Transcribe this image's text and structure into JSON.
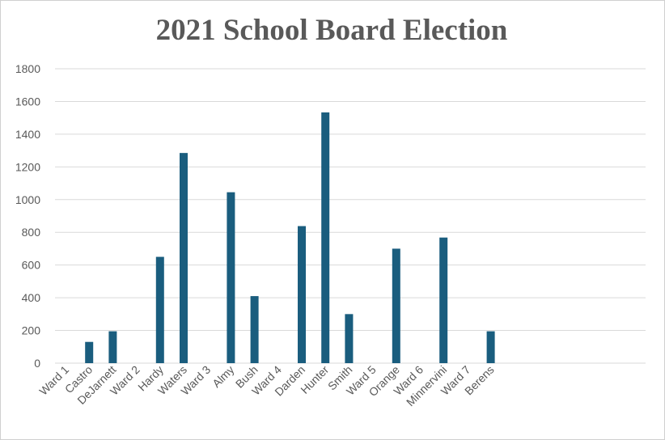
{
  "chart_data": {
    "type": "bar",
    "title": "2021 School Board Election",
    "categories": [
      "Ward 1",
      "Castro",
      "DeJarnett",
      "Ward 2",
      "Hardy",
      "Waters",
      "Ward 3",
      "Almy",
      "Bush",
      "Ward 4",
      "Darden",
      "Hunter",
      "Smith",
      "Ward 5",
      "Orange",
      "Ward 6",
      "Minnervini",
      "Ward 7",
      "Berens"
    ],
    "values": [
      0,
      130,
      195,
      0,
      650,
      1285,
      0,
      1045,
      410,
      0,
      838,
      1533,
      300,
      0,
      700,
      0,
      768,
      0,
      195
    ],
    "ylim": [
      0,
      1800
    ],
    "yticks": [
      0,
      200,
      400,
      600,
      800,
      1000,
      1200,
      1400,
      1600,
      1800
    ],
    "xlabel": "",
    "ylabel": "",
    "grid": true,
    "legend": "none",
    "bar_color": "#1a5d7e",
    "grid_color": "#d9d9d9",
    "text_color": "#595959"
  }
}
